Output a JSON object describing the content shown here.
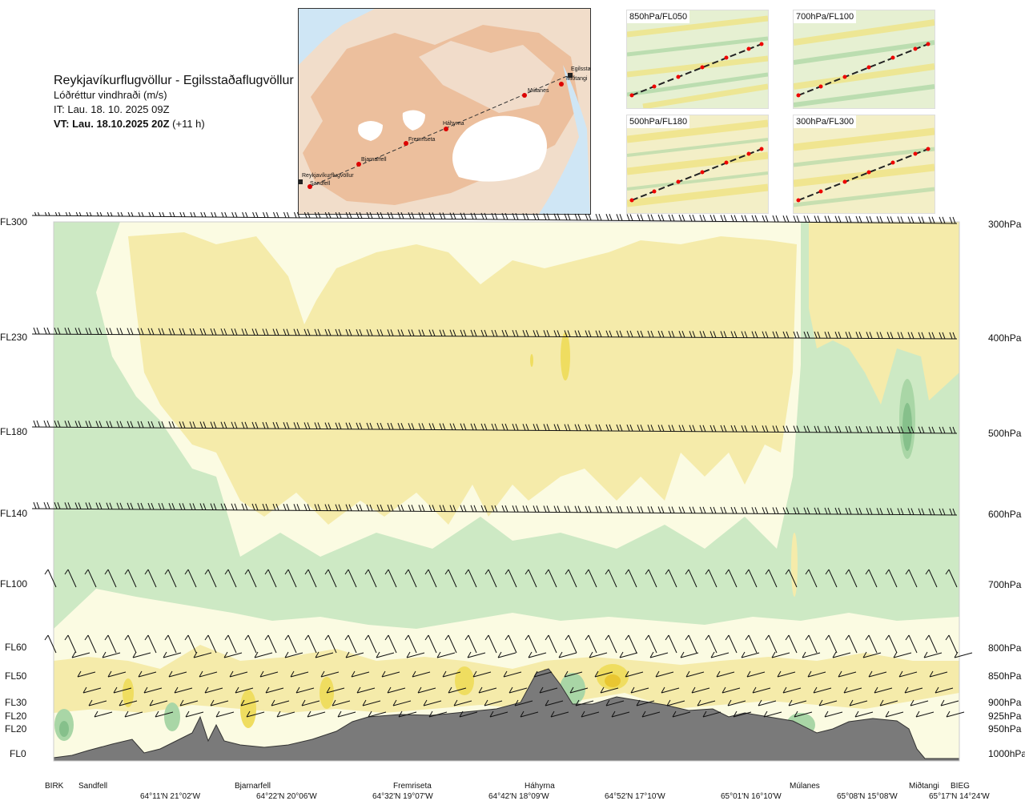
{
  "header": {
    "route": "Reykjavíkurflugvöllur - Egilsstaðaflugvöllur",
    "variable": "Lóðréttur vindhraði (m/s)",
    "issue_time": "IT: Lau. 18. 10. 2025 09Z",
    "valid_time_bold": "VT: Lau. 18.10.2025 20Z",
    "valid_time_offset": "(+11 h)"
  },
  "map": {
    "stations": [
      "Reykjavíkurflugvöllur",
      "Sandfell",
      "Bjarnarfell",
      "Fremriseta",
      "Háhyrna",
      "Múlanes",
      "Miðtangi",
      "Egilsstaðir"
    ]
  },
  "minimaps": [
    {
      "label": "850hPa/FL050"
    },
    {
      "label": "700hPa/FL100"
    },
    {
      "label": "500hPa/FL180"
    },
    {
      "label": "300hPa/FL300"
    }
  ],
  "chart_data": {
    "type": "heatmap",
    "title": "Lóðréttur vindhraði (m/s)",
    "y_levels": [
      {
        "fl": "FL300",
        "hpa": "300hPa"
      },
      {
        "fl": "FL230",
        "hpa": "400hPa"
      },
      {
        "fl": "FL180",
        "hpa": "500hPa"
      },
      {
        "fl": "FL140",
        "hpa": "600hPa"
      },
      {
        "fl": "FL100",
        "hpa": "700hPa"
      },
      {
        "fl": "FL60",
        "hpa": "800hPa"
      },
      {
        "fl": "FL50",
        "hpa": "850hPa"
      },
      {
        "fl": "FL30",
        "hpa": "900hPa"
      },
      {
        "fl": "FL20",
        "hpa": "925hPa"
      },
      {
        "fl": "FL20",
        "hpa": "950hPa"
      },
      {
        "fl": "FL0",
        "hpa": "1000hPa"
      }
    ],
    "stations_along_route": [
      "BIRK",
      "Sandfell",
      "Bjarnarfell",
      "Fremriseta",
      "Háhyrna",
      "Múlanes",
      "Miðtangi",
      "BIEG"
    ],
    "coordinates": [
      "64°11'N 21°02'W",
      "64°22'N 20°06'W",
      "64°32'N 19°07'W",
      "64°42'N 18°09'W",
      "64°52'N 17°10'W",
      "65°01'N 16°10'W",
      "65°08'N 15°08'W",
      "65°17'N 14°24'W"
    ],
    "colors": {
      "sinking_strong": "#86c08b",
      "sinking": "#a9d6a6",
      "sinking_weak": "#d3ecc8",
      "neutral": "#fbfbe2",
      "rising_weak": "#f5ebaa",
      "rising": "#efdd60",
      "rising_strong": "#e9c631",
      "terrain": "#7a7a7a"
    }
  }
}
